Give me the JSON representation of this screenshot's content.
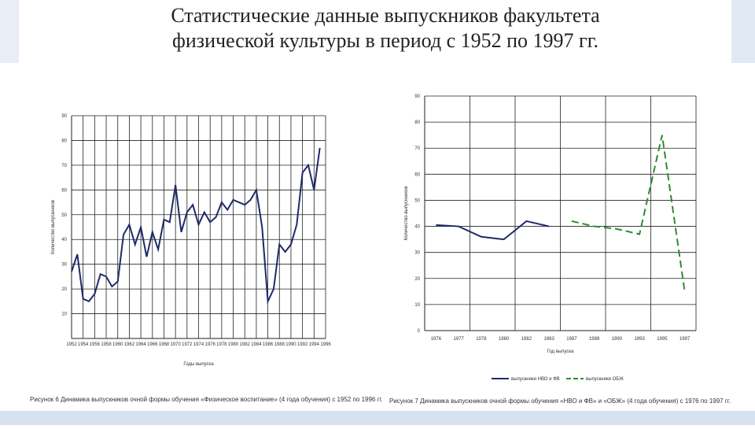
{
  "slide": {
    "title": [
      "Статистические данные выпускников факультета",
      "физической культуры в период с 1952 по 1997 гг."
    ]
  },
  "chart_data": [
    {
      "type": "line",
      "y_label": "Количество выпускников",
      "x_label": "Годы выпуска",
      "caption": "Рисунок 6   Динамика выпускников очной формы обучения «Физическое воспитание» (4 года обучения) с 1952 по 1996 гг.",
      "xlim": [
        1952,
        1996
      ],
      "xticks": [
        1952,
        1954,
        1956,
        1958,
        1960,
        1962,
        1964,
        1966,
        1968,
        1970,
        1972,
        1974,
        1976,
        1978,
        1980,
        1982,
        1984,
        1986,
        1988,
        1990,
        1992,
        1994,
        1996
      ],
      "ylim": [
        0,
        90
      ],
      "yticks": [
        10,
        20,
        30,
        40,
        50,
        60,
        70,
        80,
        90
      ],
      "grid": true,
      "x": [
        1952,
        1953,
        1954,
        1955,
        1956,
        1957,
        1958,
        1959,
        1960,
        1961,
        1962,
        1963,
        1964,
        1965,
        1966,
        1967,
        1968,
        1969,
        1970,
        1971,
        1972,
        1973,
        1974,
        1975,
        1976,
        1977,
        1978,
        1979,
        1980,
        1981,
        1982,
        1983,
        1984,
        1985,
        1986,
        1987,
        1988,
        1989,
        1990,
        1991,
        1992,
        1993,
        1994,
        1995
      ],
      "series": [
        {
          "color": "#1f2a6b",
          "values": [
            27,
            34,
            16,
            15,
            18,
            26,
            25,
            21,
            23,
            42,
            46,
            38,
            45,
            33,
            43,
            36,
            48,
            47,
            62,
            43,
            51,
            54,
            46,
            51,
            47,
            49,
            55,
            52,
            56,
            55,
            54,
            56,
            60,
            45,
            15,
            20,
            38,
            35,
            38,
            46,
            67,
            70,
            60,
            77
          ]
        }
      ]
    },
    {
      "type": "line",
      "y_label": "Количество выпускников",
      "x_label": "Год выпуска",
      "caption": "Рисунок 7   Динамика выпускников очной формы обучения «НВО и ФВ» и «ОБЖ» (4 года обучения) с 1976 по 1997 гг.",
      "categories": [
        "1976",
        "1977",
        "1978",
        "1980",
        "1982",
        "1983",
        "1987",
        "1988",
        "1990",
        "1993",
        "1995",
        "1997"
      ],
      "ylim": [
        0,
        90
      ],
      "yticks": [
        0,
        10,
        20,
        30,
        40,
        50,
        60,
        70,
        80,
        90
      ],
      "grid": true,
      "legend": "bottom",
      "series": [
        {
          "name": "выпускники НВО и ФВ",
          "color": "#1f2a6b",
          "dash": false,
          "values": [
            40.5,
            40,
            36,
            35,
            42,
            40,
            null,
            null,
            null,
            null,
            null,
            null
          ]
        },
        {
          "name": "выпускники ОБЖ",
          "color": "#2e8b2e",
          "dash": true,
          "values": [
            null,
            null,
            null,
            null,
            null,
            null,
            42,
            40,
            39,
            37,
            75,
            15
          ]
        }
      ]
    }
  ]
}
